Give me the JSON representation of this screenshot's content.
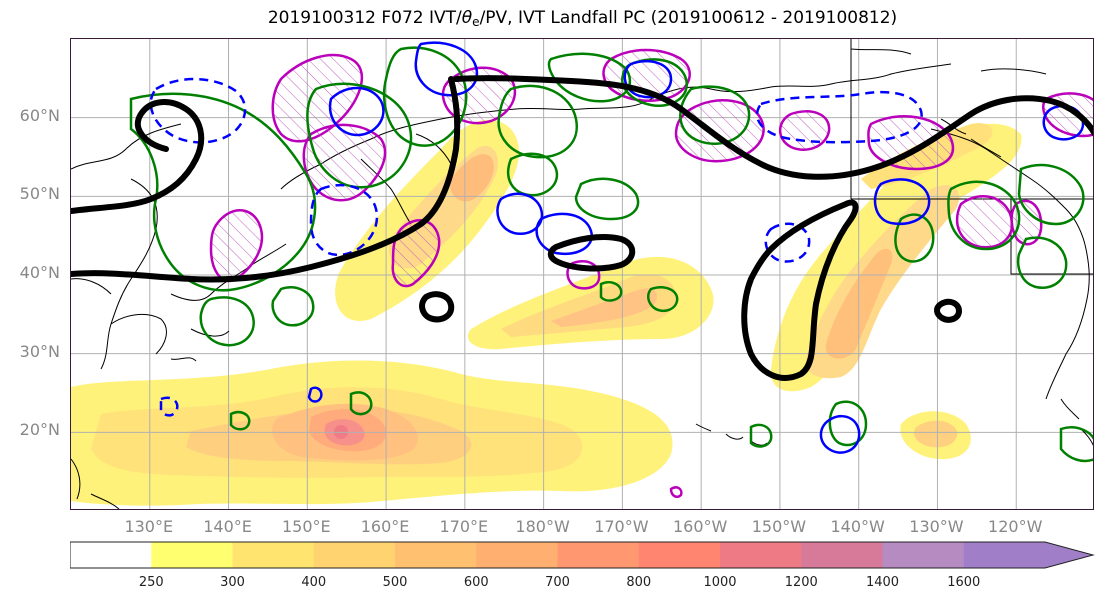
{
  "title": {
    "prefix": "2019100312 F072 IVT/",
    "theta_symbol": "θ",
    "theta_sub": "e",
    "suffix": "/PV, IVT Landfall PC (2019100612 - 2019100812)"
  },
  "map": {
    "projection": "plate-carree",
    "lon_range": [
      120,
      250
    ],
    "lat_range": [
      10,
      70
    ],
    "grid": true,
    "lat_labels": [
      "20°N",
      "30°N",
      "40°N",
      "50°N",
      "60°N"
    ],
    "lon_labels": [
      "130°E",
      "140°E",
      "150°E",
      "160°E",
      "170°E",
      "180°W",
      "170°W",
      "160°W",
      "150°W",
      "140°W",
      "130°W",
      "120°W"
    ],
    "colors": {
      "thick_contour": "#000000",
      "theta_e_contour": "#008000",
      "pv_solid": "#0000ff",
      "pv_dashed": "#0000ff",
      "hatch_contour": "#bb00bb",
      "coastline": "#000000"
    }
  },
  "colorbar": {
    "levels": [
      250,
      300,
      400,
      500,
      600,
      700,
      800,
      1000,
      1200,
      1400,
      1600
    ],
    "colors": [
      "#ffffff",
      "#ffff70",
      "#ffe570",
      "#ffd470",
      "#ffc070",
      "#ffb070",
      "#ff9870",
      "#ff8570",
      "#ee7a85",
      "#d77a99",
      "#b58bc2",
      "#a07ec8"
    ],
    "extend": "max"
  }
}
